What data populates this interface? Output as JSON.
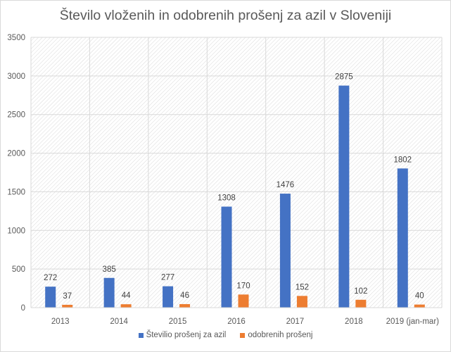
{
  "chart_data": {
    "type": "bar",
    "title": "Število vloženih in odobrenih prošenj za azil v Sloveniji",
    "xlabel": "",
    "ylabel": "",
    "categories": [
      "2013",
      "2014",
      "2015",
      "2016",
      "2017",
      "2018",
      "2019 (jan-mar)"
    ],
    "series": [
      {
        "name": "Številio prošenj za azil",
        "color": "#4472c4",
        "values": [
          272,
          385,
          277,
          1308,
          1476,
          2875,
          1802
        ]
      },
      {
        "name": "odobrenih prošenj",
        "color": "#ed7d31",
        "values": [
          37,
          44,
          46,
          170,
          152,
          102,
          40
        ]
      }
    ],
    "ylim": [
      0,
      3500
    ],
    "yticks": [
      0,
      500,
      1000,
      1500,
      2000,
      2500,
      3000,
      3500
    ],
    "grid": true,
    "legend": "bottom",
    "data_labels": true
  }
}
